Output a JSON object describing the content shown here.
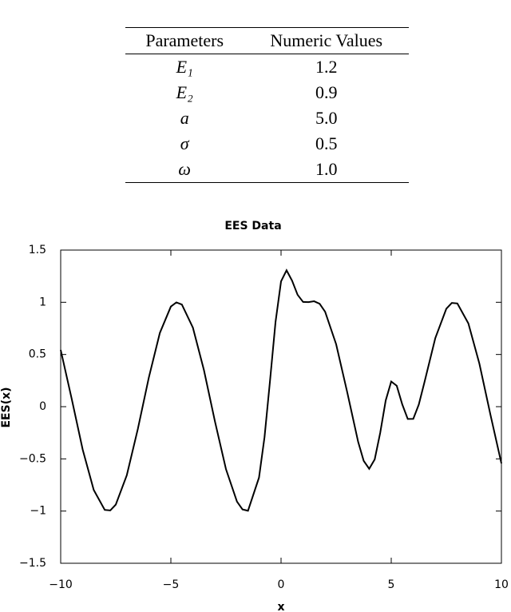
{
  "table": {
    "header": [
      "Parameters",
      "Numeric Values"
    ],
    "rows": [
      [
        "E₁",
        "1.2"
      ],
      [
        "E₂",
        "0.9"
      ],
      [
        "a",
        "5.0"
      ],
      [
        "σ",
        "0.5"
      ],
      [
        "ω",
        "1.0"
      ]
    ]
  },
  "chart_data": {
    "type": "line",
    "title": "EES Data",
    "x_label": "x",
    "y_label": "EES(x)",
    "x": [
      -10,
      -9.5,
      -9,
      -8.5,
      -8,
      -7.75,
      -7.5,
      -7,
      -6.5,
      -6,
      -5.5,
      -5,
      -4.75,
      -4.5,
      -4,
      -3.5,
      -3,
      -2.5,
      -2,
      -1.75,
      -1.5,
      -1,
      -0.75,
      -0.5,
      -0.25,
      0,
      0.25,
      0.5,
      0.75,
      1,
      1.25,
      1.5,
      1.75,
      2,
      2.5,
      3,
      3.5,
      3.75,
      4,
      4.25,
      4.5,
      4.75,
      5,
      5.25,
      5.5,
      5.75,
      6,
      6.25,
      6.5,
      7,
      7.5,
      7.75,
      8,
      8.5,
      9,
      9.5,
      10
    ],
    "series": [
      {
        "color": "#000000",
        "values": [
          0.544,
          0.075,
          -0.412,
          -0.798,
          -0.989,
          -0.994,
          -0.938,
          -0.657,
          -0.215,
          0.279,
          0.706,
          0.959,
          0.999,
          0.978,
          0.757,
          0.351,
          -0.141,
          -0.598,
          -0.909,
          -0.984,
          -0.997,
          -0.679,
          -0.292,
          0.249,
          0.812,
          1.2,
          1.306,
          1.207,
          1.072,
          1.003,
          1.002,
          1.01,
          0.986,
          0.909,
          0.598,
          0.141,
          -0.338,
          -0.519,
          -0.595,
          -0.505,
          -0.25,
          0.06,
          0.241,
          0.2,
          0.022,
          -0.118,
          -0.117,
          0.02,
          0.228,
          0.657,
          0.938,
          0.994,
          0.989,
          0.798,
          0.412,
          -0.075,
          -0.544
        ]
      }
    ],
    "xlim": [
      -10,
      10
    ],
    "xticks": [
      {
        "value": -10,
        "label": "−10"
      },
      {
        "value": -5,
        "label": "−5"
      },
      0,
      5,
      10
    ],
    "ylim": [
      -1.5,
      1.5
    ],
    "yticks": [
      {
        "value": -1.5,
        "label": "−1.5"
      },
      {
        "value": -1,
        "label": "−1"
      },
      {
        "value": -0.5,
        "label": "−0.5"
      },
      0,
      0.5,
      1,
      1.5
    ]
  }
}
